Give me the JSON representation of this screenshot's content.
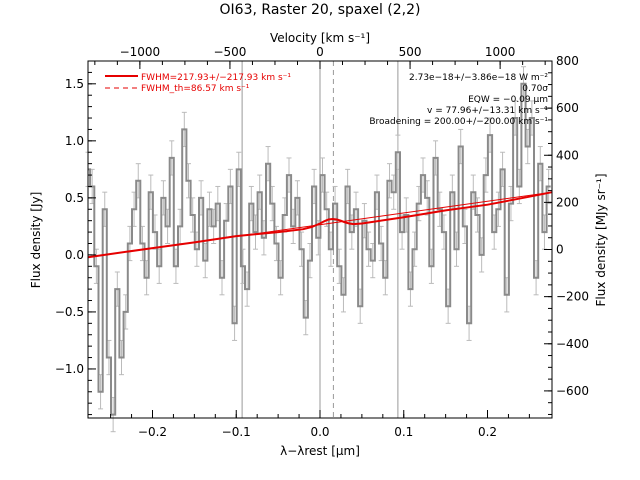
{
  "chart_data": {
    "type": "line",
    "title": "OI63, Raster 20, spaxel (2,2)",
    "xlabel": "λ−λrest [μm]",
    "ylabel": "Flux density [Jy]",
    "x2label": "Velocity [km s⁻¹]",
    "y2label": "Flux density [MJy sr⁻¹]",
    "xlim": [
      -0.277,
      0.277
    ],
    "ylim": [
      -1.43,
      1.7
    ],
    "x2lim": [
      -1288,
      1288
    ],
    "y2lim": [
      -715,
      800
    ],
    "x_ticks": [
      -0.2,
      -0.1,
      0.0,
      0.1,
      0.2
    ],
    "x_tick_labels": [
      "−0.2",
      "−0.1",
      "0.0",
      "0.1",
      "0.2"
    ],
    "y_ticks": [
      -1.0,
      -0.5,
      0.0,
      0.5,
      1.0,
      1.5
    ],
    "y_tick_labels": [
      "−1.0",
      "−0.5",
      "0.0",
      "0.5",
      "1.0",
      "1.5"
    ],
    "x2_ticks": [
      -1000,
      -500,
      0,
      500,
      1000
    ],
    "x2_tick_labels": [
      "−1000",
      "−500",
      "0",
      "500",
      "1000"
    ],
    "y2_ticks": [
      -600,
      -400,
      -200,
      0,
      200,
      400,
      600,
      800
    ],
    "y2_tick_labels": [
      "−600",
      "−400",
      "−200",
      "0",
      "200",
      "400",
      "600",
      "800"
    ],
    "vertical_lines_solid": [
      -0.093,
      0.0,
      0.093
    ],
    "vertical_line_dashed": 0.016,
    "legend": [
      {
        "label": "FWHM=217.93+/−217.93 km s⁻¹",
        "style": "solid",
        "color": "#e60000"
      },
      {
        "label": "FWHM_th=86.57 km s⁻¹",
        "style": "dashed",
        "color": "#e60000"
      }
    ],
    "annotations": [
      "2.73e−18+/−3.86e−18 W m⁻²",
      "0.70σ",
      "EQW = −0.09 μm",
      "v = 77.96+/−13.31 km s⁻¹",
      "Broadening = 200.00+/−200.00 km s⁻¹"
    ],
    "series": [
      {
        "style": "step",
        "color": "#888888",
        "x": [
          -0.277,
          -0.272,
          -0.267,
          -0.262,
          -0.257,
          -0.252,
          -0.247,
          -0.242,
          -0.237,
          -0.232,
          -0.227,
          -0.222,
          -0.217,
          -0.212,
          -0.207,
          -0.202,
          -0.197,
          -0.192,
          -0.187,
          -0.182,
          -0.177,
          -0.172,
          -0.167,
          -0.162,
          -0.157,
          -0.152,
          -0.147,
          -0.142,
          -0.137,
          -0.132,
          -0.127,
          -0.122,
          -0.117,
          -0.112,
          -0.107,
          -0.102,
          -0.097,
          -0.092,
          -0.087,
          -0.082,
          -0.077,
          -0.072,
          -0.067,
          -0.062,
          -0.057,
          -0.052,
          -0.047,
          -0.042,
          -0.037,
          -0.032,
          -0.027,
          -0.022,
          -0.017,
          -0.012,
          -0.007,
          -0.002,
          0.003,
          0.008,
          0.013,
          0.018,
          0.023,
          0.028,
          0.033,
          0.038,
          0.043,
          0.048,
          0.053,
          0.058,
          0.063,
          0.068,
          0.073,
          0.078,
          0.083,
          0.088,
          0.093,
          0.098,
          0.103,
          0.108,
          0.113,
          0.118,
          0.123,
          0.128,
          0.133,
          0.138,
          0.143,
          0.148,
          0.153,
          0.158,
          0.163,
          0.168,
          0.173,
          0.178,
          0.183,
          0.188,
          0.193,
          0.198,
          0.203,
          0.208,
          0.213,
          0.218,
          0.223,
          0.228,
          0.233,
          0.238,
          0.243,
          0.248,
          0.253,
          0.258,
          0.263,
          0.268,
          0.273
        ],
        "y": [
          0.75,
          0.6,
          -0.1,
          -1.2,
          0.4,
          -0.9,
          -1.4,
          -0.3,
          -0.9,
          -0.5,
          0.1,
          0.4,
          0.65,
          0.1,
          -0.2,
          0.55,
          0.2,
          -0.1,
          0.5,
          0.25,
          0.85,
          -0.1,
          0.25,
          1.1,
          0.65,
          0.35,
          0.05,
          0.5,
          -0.05,
          0.4,
          0.25,
          0.45,
          -0.2,
          0.3,
          0.6,
          -0.6,
          0.75,
          -0.1,
          -0.3,
          0.45,
          0.2,
          0.55,
          0.15,
          0.8,
          0.45,
          0.1,
          -0.2,
          0.35,
          0.7,
          0.25,
          0.5,
          0.05,
          -0.55,
          -0.05,
          0.6,
          0.15,
          0.7,
          0.4,
          0.05,
          0.45,
          -0.1,
          -0.35,
          0.6,
          0.2,
          0.4,
          -0.45,
          0.3,
          0.05,
          -0.05,
          0.55,
          0.1,
          -0.2,
          0.65,
          0.55,
          0.9,
          0.2,
          0.35,
          -0.3,
          0.05,
          0.45,
          0.7,
          0.5,
          -0.1,
          0.85,
          0.4,
          0.2,
          -0.45,
          0.55,
          0.05,
          0.95,
          0.25,
          -0.6,
          0.55,
          0.35,
          0.0,
          0.7,
          1.05,
          0.2,
          0.4,
          0.75,
          -0.35,
          0.45,
          1.2,
          0.6,
          1.5,
          0.95,
          1.2,
          -0.2,
          0.8,
          0.2,
          0.6
        ],
        "err": 0.15
      },
      {
        "name": "fit",
        "style": "line",
        "color": "#e60000",
        "x": [
          -0.277,
          -0.25,
          -0.2,
          -0.15,
          -0.1,
          -0.05,
          -0.02,
          -0.01,
          0.0,
          0.005,
          0.01,
          0.015,
          0.02,
          0.025,
          0.03,
          0.035,
          0.04,
          0.05,
          0.1,
          0.15,
          0.2,
          0.25,
          0.277
        ],
        "y": [
          -0.02,
          0.008,
          0.06,
          0.11,
          0.165,
          0.2,
          0.225,
          0.245,
          0.275,
          0.295,
          0.31,
          0.315,
          0.31,
          0.3,
          0.285,
          0.275,
          0.27,
          0.275,
          0.33,
          0.39,
          0.44,
          0.51,
          0.55
        ]
      }
    ]
  }
}
